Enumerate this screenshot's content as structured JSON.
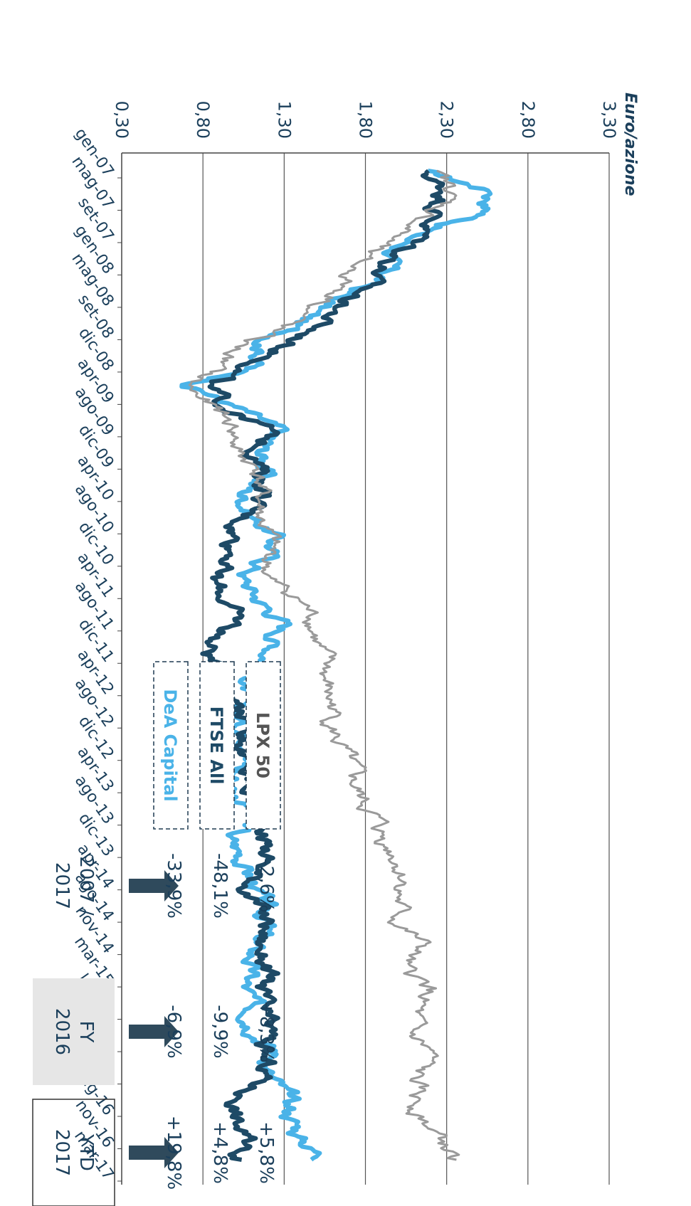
{
  "chart_data": {
    "type": "line",
    "ylabel": "Euro/azione",
    "yticks": [
      "3,30",
      "2,80",
      "2,30",
      "1,80",
      "1,30",
      "0,80",
      "0,30"
    ],
    "yvalues": [
      3.3,
      2.8,
      2.3,
      1.8,
      1.3,
      0.8,
      0.3
    ],
    "ylim": [
      0.3,
      3.3
    ],
    "grid": true,
    "xticks": [
      "gen-07",
      "mag-07",
      "set-07",
      "gen-08",
      "mag-08",
      "set-08",
      "dic-08",
      "apr-09",
      "ago-09",
      "dic-09",
      "apr-10",
      "ago-10",
      "dic-10",
      "apr-11",
      "ago-11",
      "dic-11",
      "apr-12",
      "ago-12",
      "dic-12",
      "apr-13",
      "ago-13",
      "dic-13",
      "apr-14",
      "ago-14",
      "nov-14",
      "mar-15",
      "lug-15",
      "nov-15",
      "mar-16",
      "lug-16",
      "nov-16",
      "mar-17"
    ],
    "series": [
      {
        "name": "DeA Capital",
        "color": "#4ab3e8",
        "values": [
          2.15,
          2.6,
          2.55,
          2.1,
          1.95,
          1.9,
          1.6,
          1.4,
          1.2,
          1.15,
          0.75,
          1.0,
          1.25,
          1.15,
          1.2,
          1.05,
          1.1,
          1.25,
          1.2,
          1.05,
          1.15,
          1.3,
          1.25,
          1.2,
          1.05,
          1.0,
          1.05,
          1.15,
          1.0,
          1.0,
          1.15,
          0.95,
          1.05,
          1.1,
          1.15,
          1.2,
          1.1,
          1.1,
          1.05,
          1.1,
          1.15,
          1.25,
          1.2,
          1.3,
          1.35,
          1.4,
          1.55
        ]
      },
      {
        "name": "FTSE All",
        "color": "#1e4a66",
        "values": [
          2.15,
          2.3,
          2.25,
          2.15,
          2.0,
          1.85,
          1.7,
          1.55,
          1.35,
          1.15,
          0.8,
          0.95,
          1.2,
          1.15,
          1.15,
          1.2,
          1.05,
          1.0,
          1.0,
          0.85,
          0.95,
          1.0,
          0.85,
          0.85,
          0.95,
          1.05,
          1.1,
          1.05,
          1.05,
          1.1,
          1.2,
          1.2,
          1.2,
          1.1,
          1.1,
          1.2,
          1.15,
          1.2,
          1.15,
          1.15,
          1.2,
          1.15,
          1.2,
          1.05,
          1.0,
          1.05,
          1.05
        ]
      },
      {
        "name": "LPX 50",
        "color": "#9a9a9a",
        "values": [
          2.2,
          2.35,
          2.2,
          2.0,
          1.75,
          1.7,
          1.6,
          1.35,
          1.05,
          0.9,
          0.7,
          0.85,
          1.0,
          1.0,
          1.15,
          1.15,
          1.15,
          1.2,
          1.2,
          1.2,
          1.4,
          1.5,
          1.5,
          1.55,
          1.55,
          1.6,
          1.6,
          1.65,
          1.7,
          1.75,
          1.85,
          1.9,
          2.0,
          2.05,
          2.0,
          2.0,
          2.15,
          2.0,
          2.2,
          2.1,
          2.05,
          2.2,
          2.1,
          2.1,
          2.15,
          2.25,
          2.35
        ]
      }
    ],
    "legend": [
      "DeA Capital",
      "FTSE All",
      "LPX 50"
    ],
    "periods": [
      {
        "label": "2007 / 2017",
        "values": [
          "-33,9%",
          "-48,1%",
          "-2,6%"
        ]
      },
      {
        "label": "FY 2016",
        "values": [
          "-6,9%",
          "-9,9%",
          "+8,3%"
        ]
      },
      {
        "label": "YTD 2017",
        "values": [
          "+19,8%",
          "+4,8%",
          "+5,8%"
        ]
      }
    ],
    "colors": {
      "arrow": "#2f4a5c",
      "grid": "#555555",
      "fy_box": "#e6e6e6"
    }
  }
}
